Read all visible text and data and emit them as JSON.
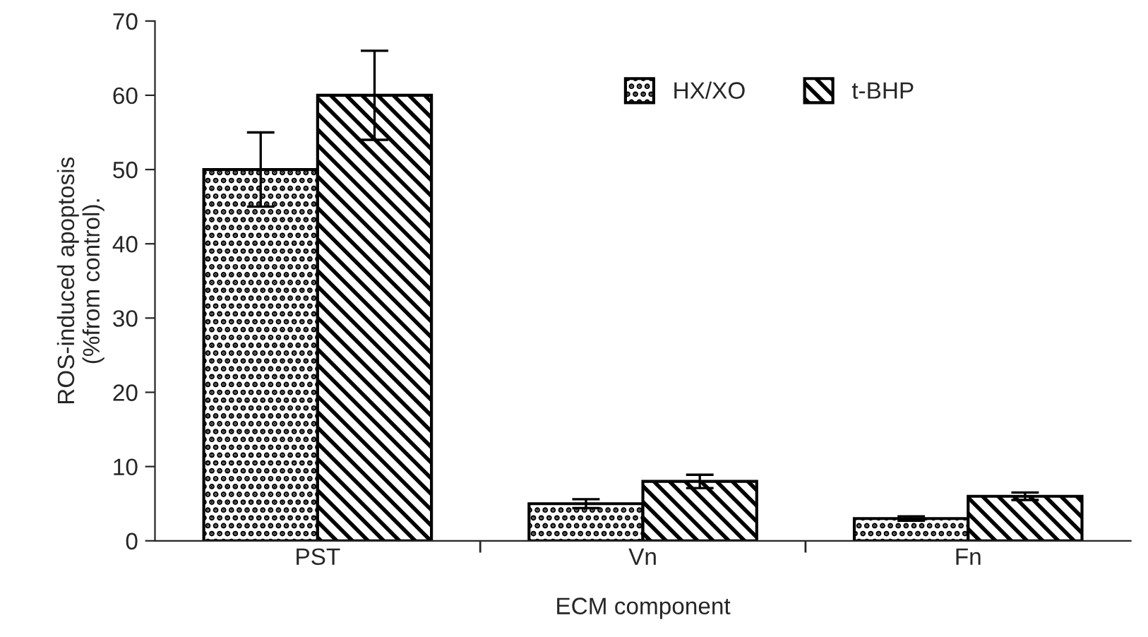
{
  "chart_data": {
    "type": "bar",
    "xlabel": "ECM component",
    "ylabel": "ROS-induced apoptosis\n(%from control).",
    "categories": [
      "PST",
      "Vn",
      "Fn"
    ],
    "series": [
      {
        "name": "HX/XO",
        "color": "#000000",
        "values": [
          50,
          5,
          3
        ],
        "errors": [
          5,
          0.6,
          0.3
        ]
      },
      {
        "name": "t-BHP",
        "color": "#000000",
        "values": [
          60,
          8,
          6
        ],
        "errors": [
          6,
          0.9,
          0.5
        ]
      }
    ],
    "ylim": [
      0,
      70
    ],
    "yticks": [
      0,
      10,
      20,
      30,
      40,
      50,
      60,
      70
    ],
    "legend": "top right",
    "grid": false
  }
}
